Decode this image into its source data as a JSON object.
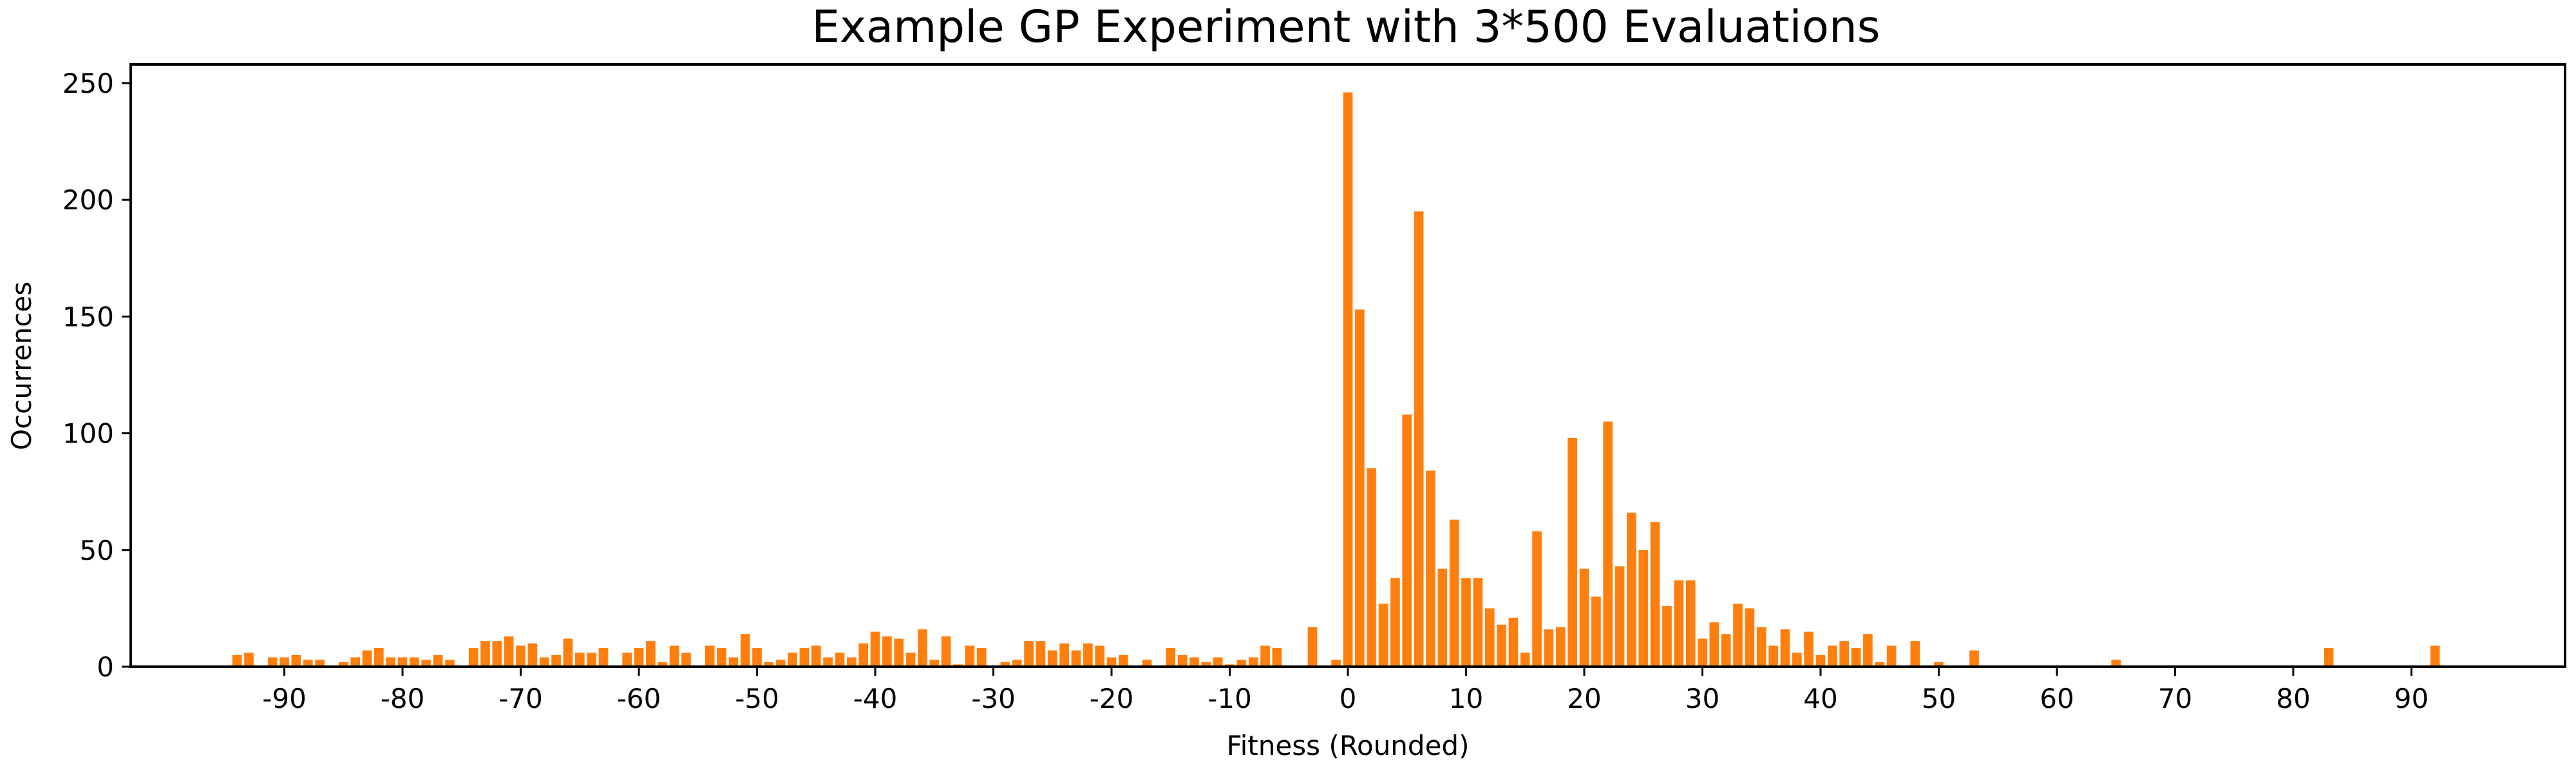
{
  "chart_data": {
    "type": "bar",
    "title": "Example GP Experiment with 3*500 Evaluations",
    "xlabel": "Fitness (Rounded)",
    "ylabel": "Occurrences",
    "xlim": [
      -103,
      103
    ],
    "ylim": [
      0,
      258
    ],
    "x_ticks": [
      -90,
      -80,
      -70,
      -60,
      -50,
      -40,
      -30,
      -20,
      -10,
      0,
      10,
      20,
      30,
      40,
      50,
      60,
      70,
      80,
      90
    ],
    "y_ticks": [
      0,
      50,
      100,
      150,
      200,
      250
    ],
    "bar_color": "#ff7f0e",
    "grid": false,
    "legend": "none",
    "x": [
      -94,
      -93,
      -91,
      -90,
      -89,
      -88,
      -87,
      -85,
      -84,
      -83,
      -82,
      -81,
      -80,
      -79,
      -78,
      -77,
      -76,
      -74,
      -73,
      -72,
      -71,
      -70,
      -69,
      -68,
      -67,
      -66,
      -65,
      -64,
      -63,
      -61,
      -60,
      -59,
      -58,
      -57,
      -56,
      -54,
      -53,
      -52,
      -51,
      -50,
      -49,
      -48,
      -47,
      -46,
      -45,
      -44,
      -43,
      -42,
      -41,
      -40,
      -39,
      -38,
      -37,
      -36,
      -35,
      -34,
      -33,
      -32,
      -31,
      -29,
      -28,
      -27,
      -26,
      -25,
      -24,
      -23,
      -22,
      -21,
      -20,
      -19,
      -17,
      -15,
      -14,
      -13,
      -12,
      -11,
      -10,
      -9,
      -8,
      -7,
      -6,
      -3,
      -1,
      0,
      1,
      2,
      3,
      4,
      5,
      6,
      7,
      8,
      9,
      10,
      11,
      12,
      13,
      14,
      15,
      16,
      17,
      18,
      19,
      20,
      21,
      22,
      23,
      24,
      25,
      26,
      27,
      28,
      29,
      30,
      31,
      32,
      33,
      34,
      35,
      36,
      37,
      38,
      39,
      40,
      41,
      42,
      43,
      44,
      45,
      46,
      48,
      50,
      53,
      65,
      83,
      92
    ],
    "values": [
      5,
      6,
      4,
      4,
      5,
      3,
      3,
      2,
      4,
      7,
      8,
      4,
      4,
      4,
      3,
      5,
      3,
      8,
      11,
      11,
      13,
      9,
      10,
      4,
      5,
      12,
      6,
      6,
      8,
      6,
      8,
      11,
      2,
      9,
      6,
      9,
      8,
      4,
      14,
      8,
      2,
      3,
      6,
      8,
      9,
      4,
      6,
      4,
      10,
      15,
      13,
      12,
      6,
      16,
      3,
      13,
      1,
      9,
      8,
      2,
      3,
      11,
      11,
      7,
      10,
      7,
      10,
      9,
      4,
      5,
      3,
      8,
      5,
      4,
      2,
      4,
      1,
      3,
      4,
      9,
      8,
      17,
      3,
      246,
      153,
      85,
      27,
      38,
      108,
      195,
      84,
      42,
      63,
      38,
      38,
      25,
      18,
      21,
      6,
      58,
      16,
      17,
      98,
      42,
      30,
      105,
      43,
      66,
      50,
      62,
      26,
      37,
      37,
      12,
      19,
      14,
      27,
      25,
      17,
      9,
      16,
      6,
      15,
      5,
      9,
      11,
      8,
      14,
      2,
      9,
      11,
      2,
      7,
      3,
      8,
      9
    ]
  }
}
